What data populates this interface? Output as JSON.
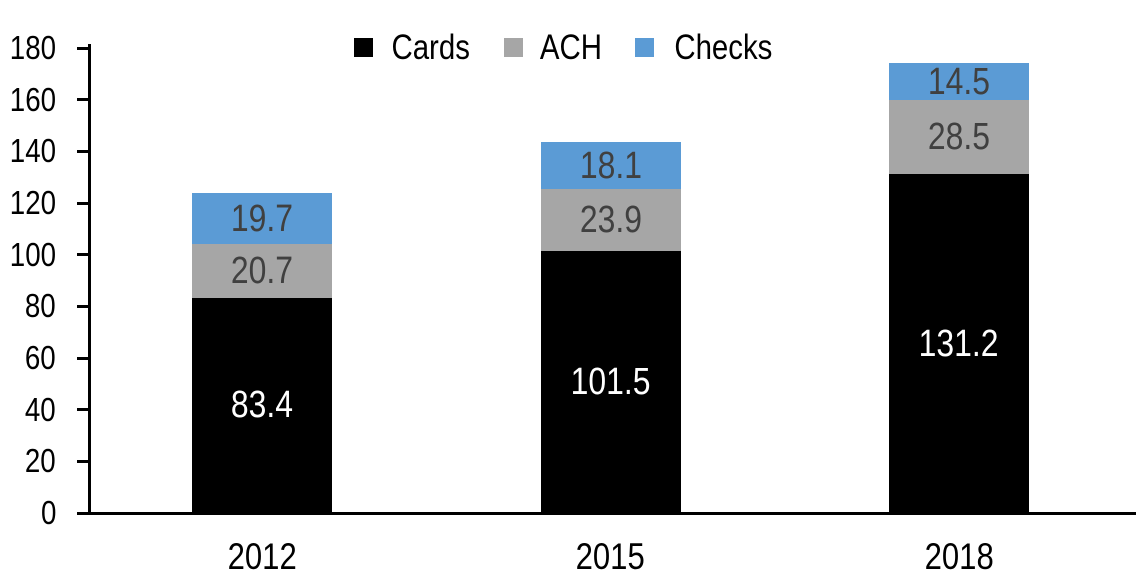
{
  "chart_data": {
    "type": "bar",
    "stacked": true,
    "title": "",
    "categories": [
      "2012",
      "2015",
      "2018"
    ],
    "series": [
      {
        "name": "Cards",
        "color": "#000000",
        "label_color": "#ffffff",
        "values": [
          83.4,
          101.5,
          131.2
        ]
      },
      {
        "name": "ACH",
        "color": "#a6a6a6",
        "label_color": "#404040",
        "values": [
          20.7,
          23.9,
          28.5
        ]
      },
      {
        "name": "Checks",
        "color": "#5b9bd5",
        "label_color": "#404040",
        "values": [
          19.7,
          18.1,
          14.5
        ]
      }
    ],
    "totals": [
      123.8,
      143.5,
      174.2
    ],
    "ylim": [
      0,
      180
    ],
    "ytick_step": 20,
    "ytick_labels": [
      "0",
      "20",
      "40",
      "60",
      "80",
      "100",
      "120",
      "140",
      "160",
      "180"
    ],
    "grid": false,
    "legend_position": "top-center",
    "axis_color": "#000000",
    "background": "#ffffff",
    "value_decimals": 1
  }
}
